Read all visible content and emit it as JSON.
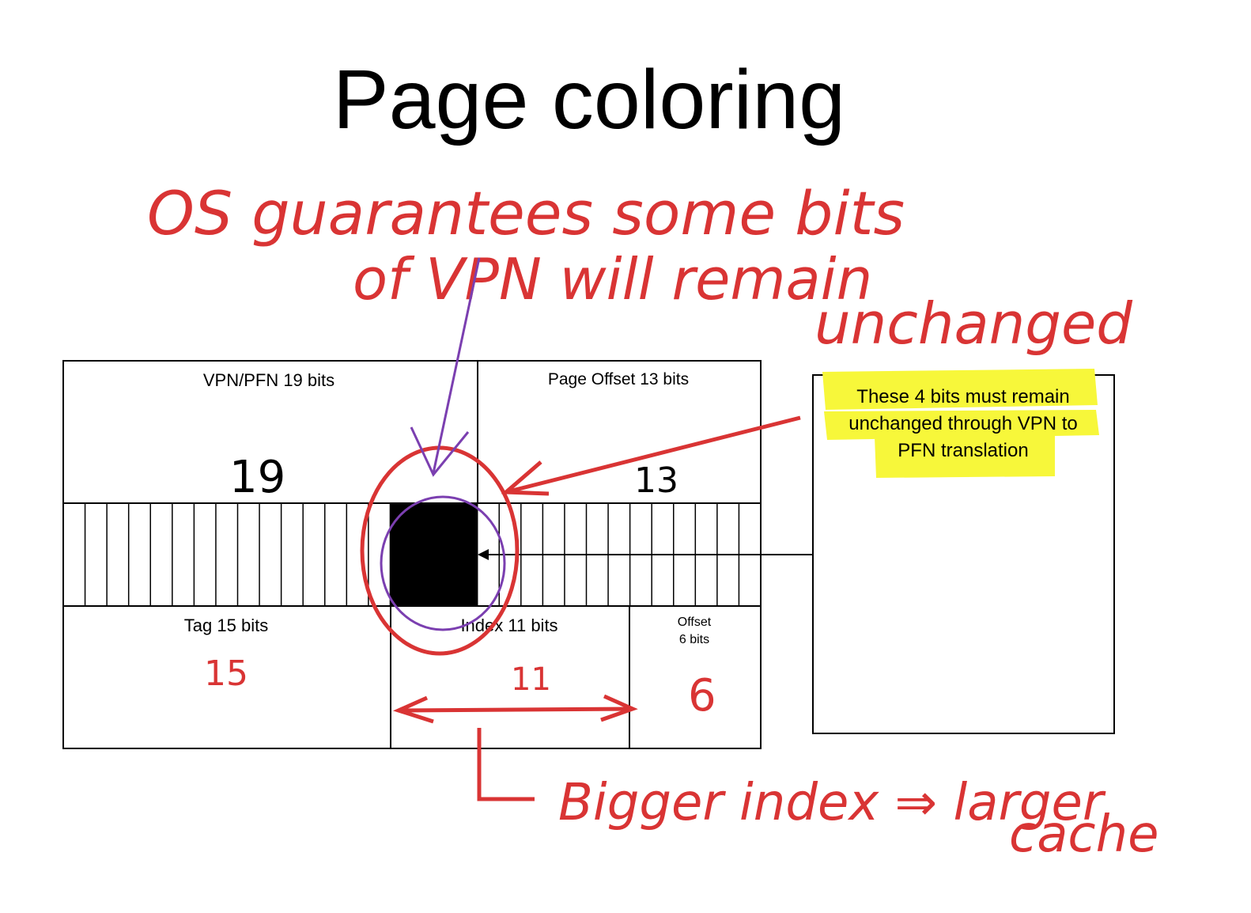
{
  "title": "Page coloring",
  "diagram": {
    "address_top": {
      "vpn_label": "VPN/PFN 19 bits",
      "offset_label": "Page Offset 13 bits"
    },
    "address_bottom": {
      "tag_label": "Tag 15 bits",
      "index_label": "Index 11 bits",
      "offset_label_line1": "Offset",
      "offset_label_line2": "6 bits"
    },
    "bit_count": 32,
    "highlighted_bits": 4,
    "callout": {
      "line1": "These 4 bits must remain",
      "line2": "unchanged through VPN to",
      "line3": "PFN translation",
      "highlight_color": "#f7f73a"
    }
  },
  "annotations": {
    "ink_color": "#d93434",
    "purple_color": "#7b3fb0",
    "line1": "OS guarantees some bits",
    "line2": "of VPN will remain",
    "line3": "unchanged",
    "num_19": "19",
    "num_13": "13",
    "num_15": "15",
    "num_11": "11",
    "num_6": "6",
    "bottom_line1": "Bigger index ⇒ larger",
    "bottom_line2": "cache"
  }
}
